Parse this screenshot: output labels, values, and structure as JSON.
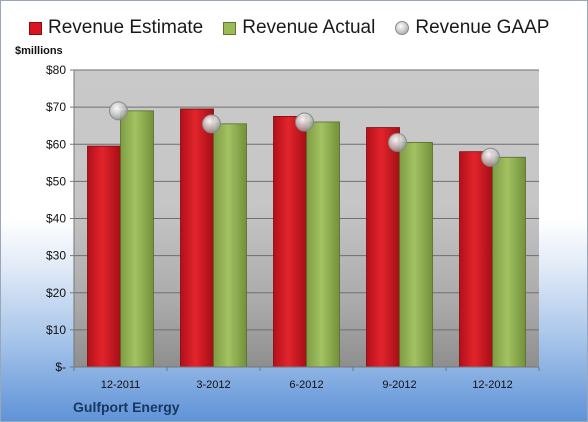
{
  "chart_data": {
    "type": "bar",
    "unit_label": "$millions",
    "company": "Gulfport Energy",
    "categories": [
      "12-2011",
      "3-2012",
      "6-2012",
      "9-2012",
      "12-2012"
    ],
    "series": [
      {
        "name": "Revenue Estimate",
        "kind": "bar",
        "color": "#d9161f",
        "values": [
          59.5,
          69.5,
          67.5,
          64.5,
          58
        ]
      },
      {
        "name": "Revenue Actual",
        "kind": "bar",
        "color": "#9bbb59",
        "values": [
          69,
          65.5,
          66,
          60.5,
          56.5
        ]
      },
      {
        "name": "Revenue GAAP",
        "kind": "marker",
        "color": "#b0b0b0",
        "values": [
          69,
          65.5,
          66,
          60.5,
          56.5
        ]
      }
    ],
    "yticks": [
      {
        "value": 0,
        "label": "$-"
      },
      {
        "value": 10,
        "label": "$10"
      },
      {
        "value": 20,
        "label": "$20"
      },
      {
        "value": 30,
        "label": "$30"
      },
      {
        "value": 40,
        "label": "$40"
      },
      {
        "value": 50,
        "label": "$50"
      },
      {
        "value": 60,
        "label": "$60"
      },
      {
        "value": 70,
        "label": "$70"
      },
      {
        "value": 80,
        "label": "$80"
      }
    ],
    "ylim": [
      0,
      80
    ],
    "grid": true,
    "legend_position": "top"
  }
}
